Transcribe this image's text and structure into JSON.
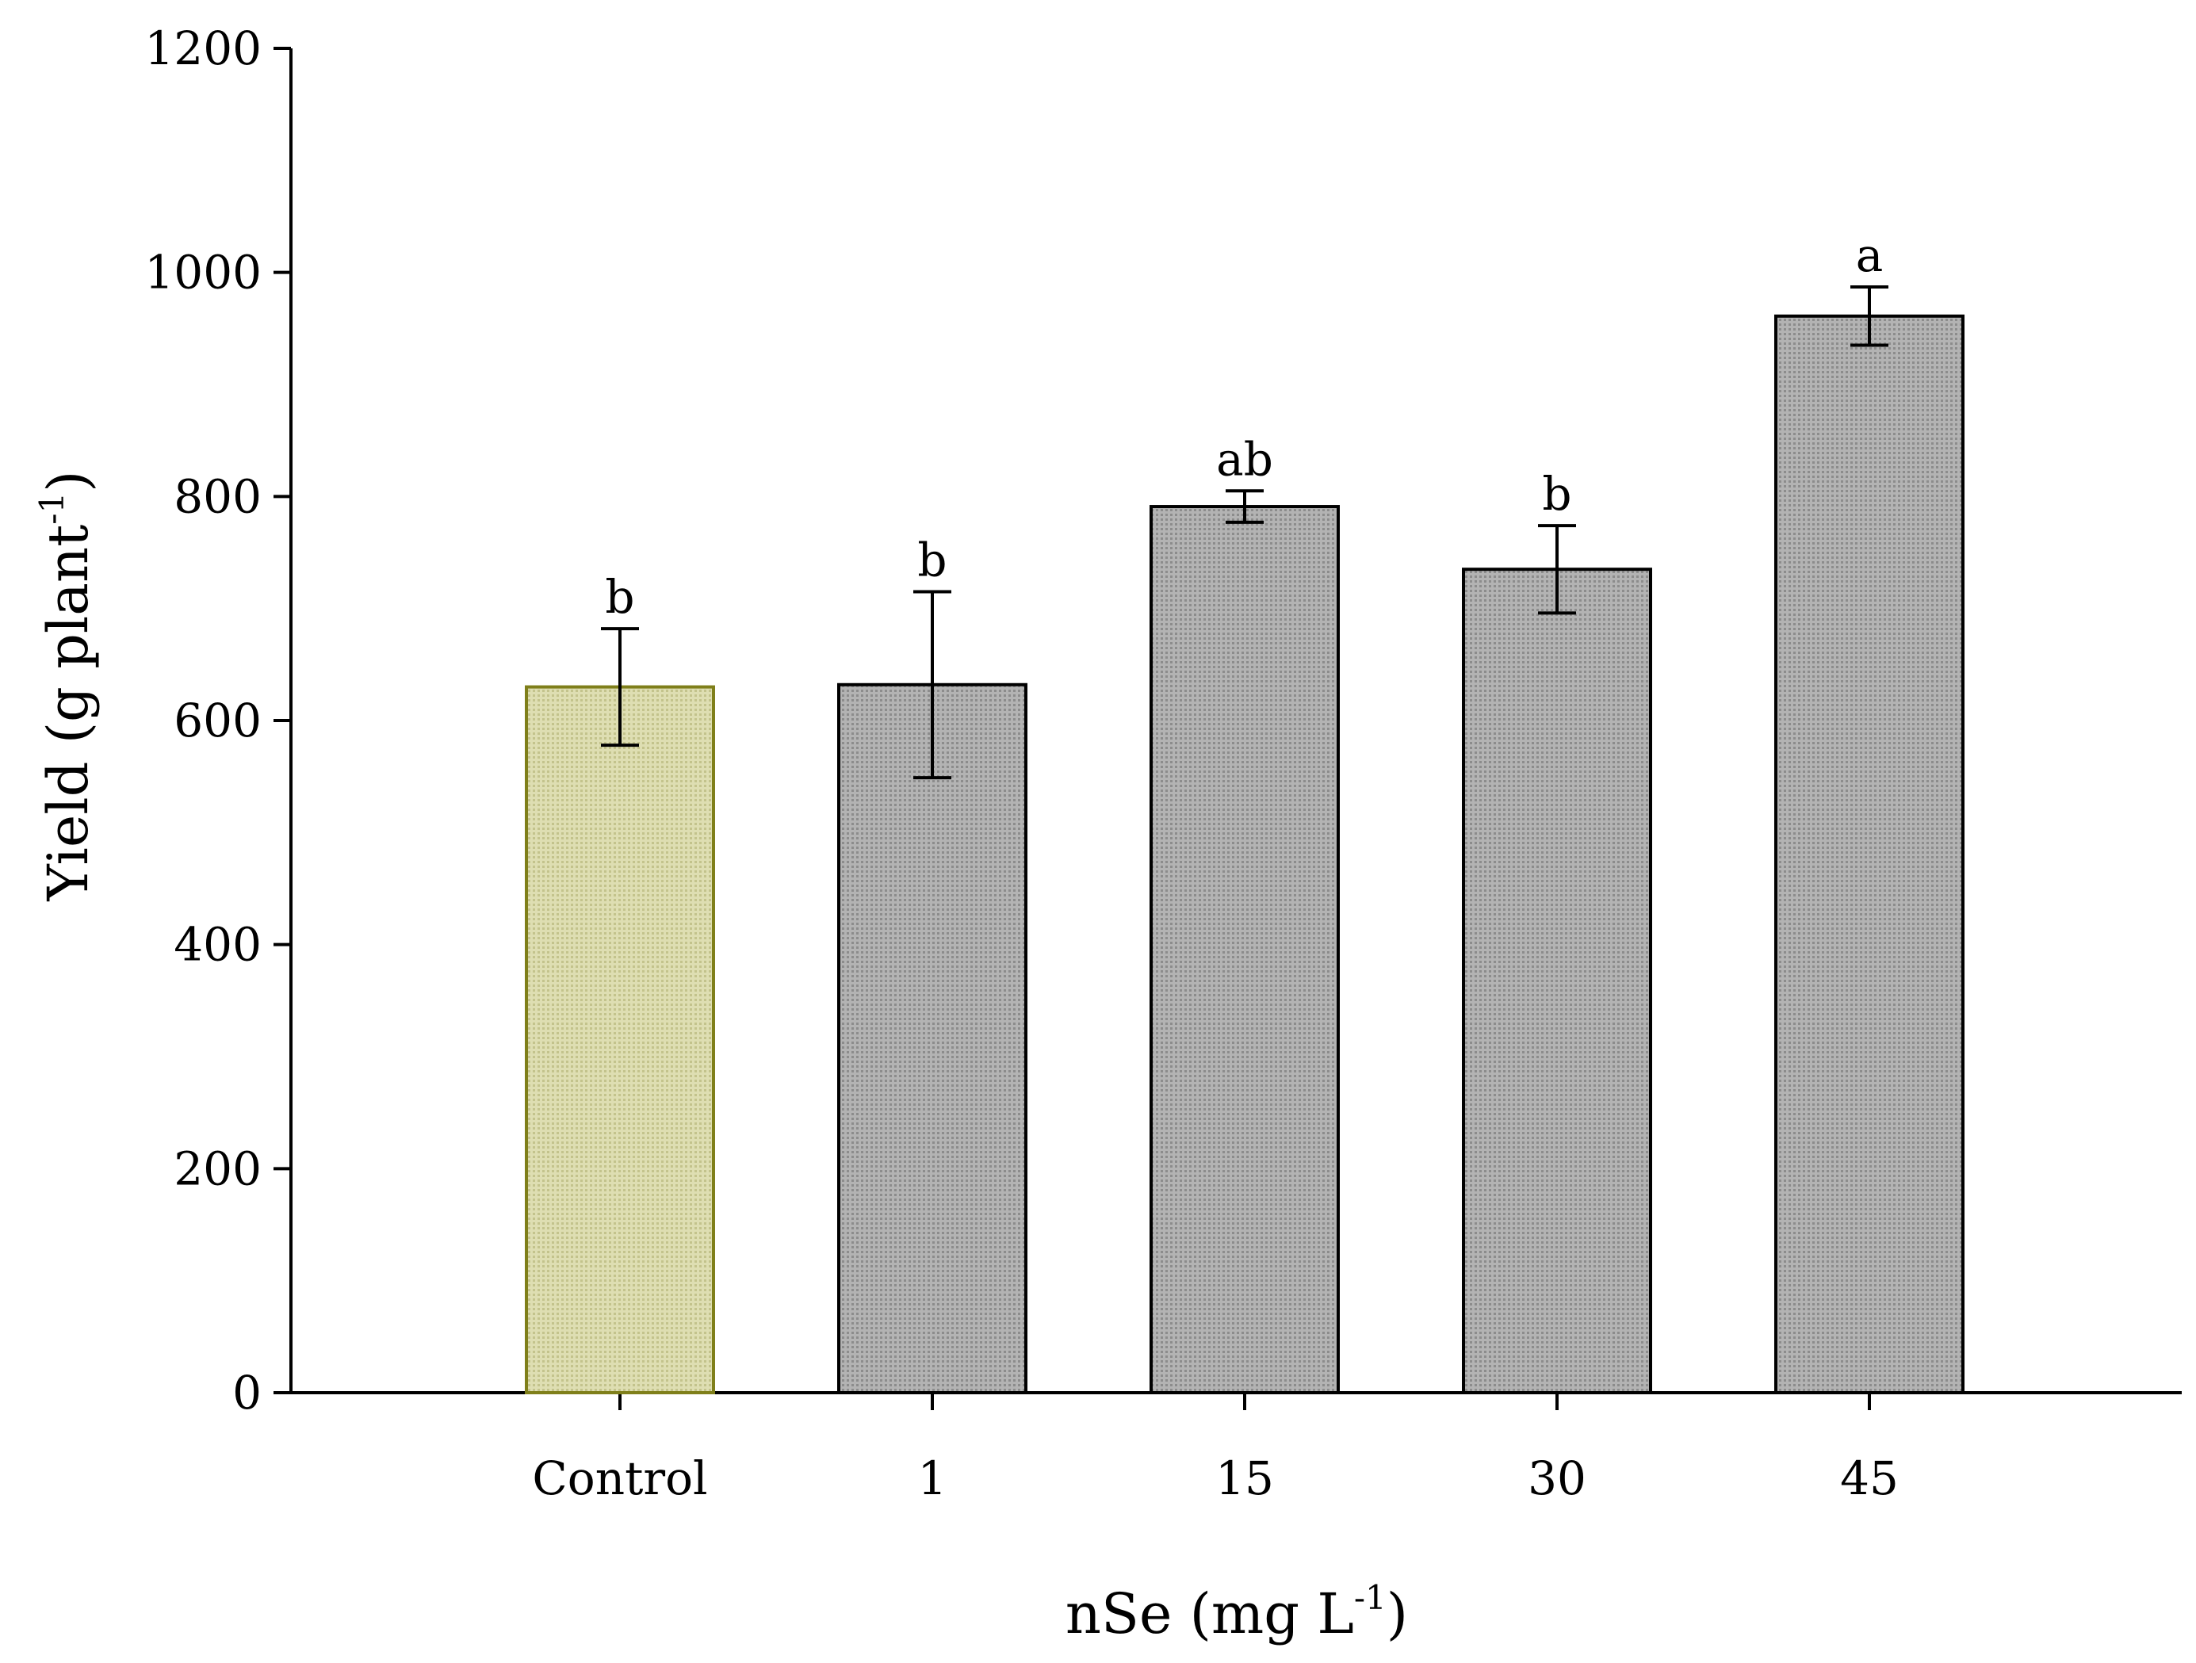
{
  "chart_data": {
    "type": "bar",
    "title": "",
    "xlabel": {
      "main": "nSe (mg L",
      "sup": "-1",
      "close": ")"
    },
    "ylabel": {
      "main": "Yield (g plant",
      "sup": "-1",
      "close": ")"
    },
    "ylim": [
      0,
      1200
    ],
    "yticks": [
      "0",
      "200",
      "400",
      "600",
      "800",
      "1000",
      "1200"
    ],
    "categories": [
      "Control",
      "1",
      "15",
      "30",
      "45"
    ],
    "values": [
      630,
      632,
      791,
      735,
      961
    ],
    "errors": [
      52,
      83,
      14,
      39,
      26
    ],
    "significance": [
      "b",
      "b",
      "ab",
      "b",
      "a"
    ],
    "colors": [
      "#d6d6a4",
      "#a6a6a6",
      "#a6a6a6",
      "#a6a6a6",
      "#a6a6a6"
    ],
    "stroke_colors": [
      "#7f7f1a",
      "#000000",
      "#000000",
      "#000000",
      "#000000"
    ],
    "grid": false,
    "legend": "none"
  }
}
